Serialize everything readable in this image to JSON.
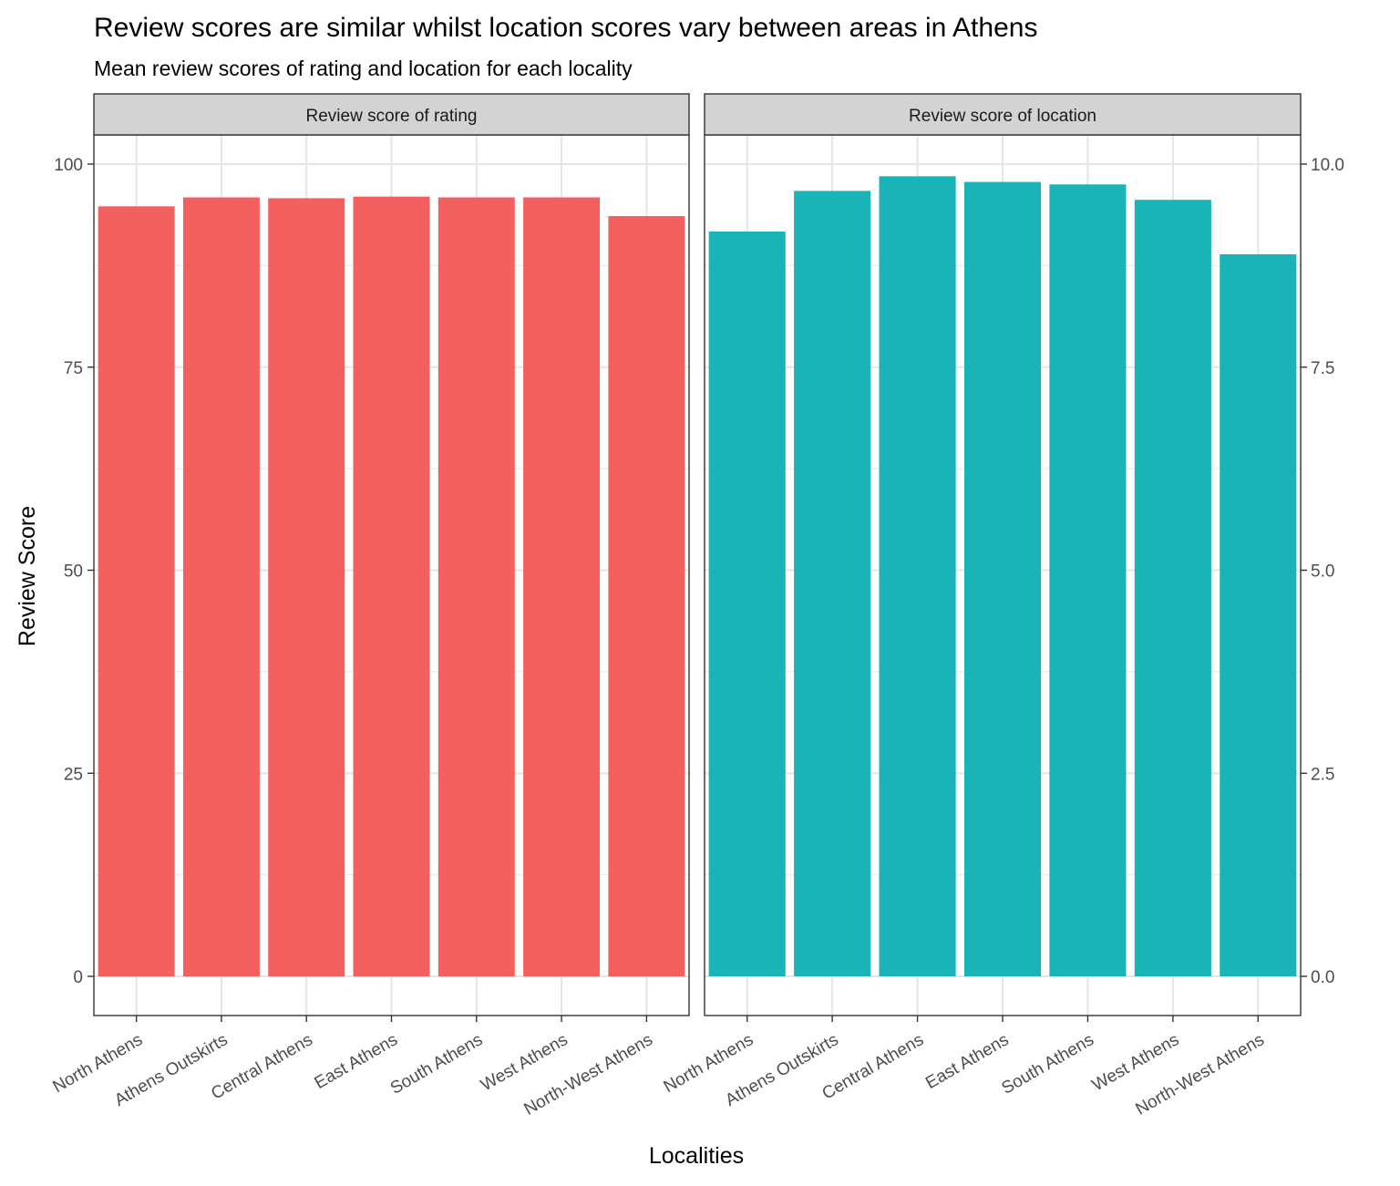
{
  "title": "Review scores are similar whilst location scores vary between areas in Athens",
  "subtitle": "Mean review scores of rating and location for each locality",
  "xlabel": "Localities",
  "ylabel": "Review Score",
  "chart_data": [
    {
      "type": "bar",
      "facet_label": "Review score of rating",
      "color": "#F26060",
      "categories": [
        "North Athens",
        "Athens Outskirts",
        "Central Athens",
        "East Athens",
        "South Athens",
        "West Athens",
        "North-West Athens"
      ],
      "values": [
        94.8,
        95.9,
        95.8,
        96.0,
        95.9,
        95.9,
        93.6
      ],
      "ylim": [
        -4.7,
        100
      ],
      "y_ticks": [
        0,
        25,
        50,
        75,
        100
      ],
      "y_tick_labels": [
        "0",
        "25",
        "50",
        "75",
        "100"
      ],
      "y_axis_side": "left",
      "grid": true
    },
    {
      "type": "bar",
      "facet_label": "Review score of location",
      "color": "#1AB3B7",
      "categories": [
        "North Athens",
        "Athens Outskirts",
        "Central Athens",
        "East Athens",
        "South Athens",
        "West Athens",
        "North-West Athens"
      ],
      "values": [
        9.17,
        9.67,
        9.85,
        9.78,
        9.75,
        9.56,
        8.89
      ],
      "ylim": [
        -0.47,
        10
      ],
      "y_ticks": [
        0,
        2.5,
        5,
        7.5,
        10
      ],
      "y_tick_labels": [
        "0.0",
        "2.5",
        "5.0",
        "7.5",
        "10.0"
      ],
      "y_axis_side": "right",
      "grid": true
    }
  ]
}
